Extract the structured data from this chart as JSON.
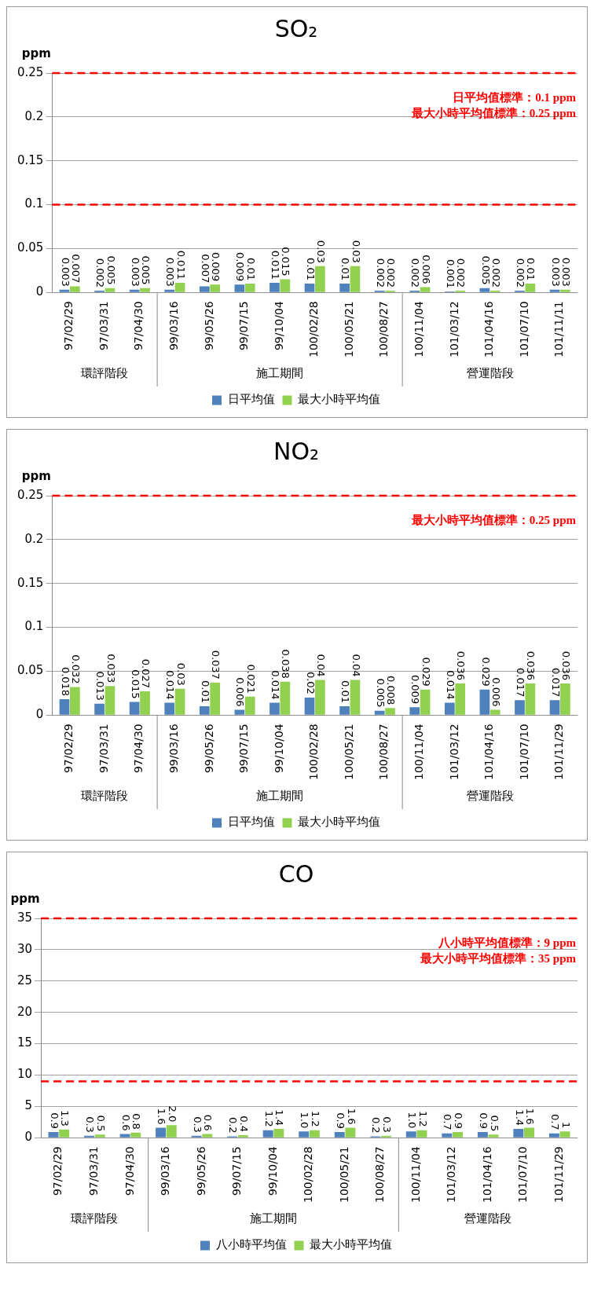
{
  "chart_data": [
    {
      "type": "bar",
      "title": "SO₂",
      "ylabel": "ppm",
      "categories": [
        "97/02/29",
        "97/03/31",
        "97/04/30",
        "99/03/16",
        "99/05/26",
        "99/07/15",
        "99/10/04",
        "100/02/28",
        "100/05/21",
        "100/08/27",
        "100/11/04",
        "101/03/12",
        "101/04/16",
        "101/07/10",
        "101/11/11"
      ],
      "series": [
        {
          "name": "日平均值",
          "color": "#4f81bd",
          "values": [
            0.003,
            0.002,
            0.003,
            0.003,
            0.007,
            0.009,
            0.011,
            0.01,
            0.01,
            0.002,
            0.002,
            0.001,
            0.005,
            0.002,
            0.003
          ]
        },
        {
          "name": "最大小時平均值",
          "color": "#92d050",
          "values": [
            0.007,
            0.005,
            0.005,
            0.011,
            0.009,
            0.01,
            0.015,
            0.03,
            0.03,
            0.002,
            0.006,
            0.002,
            0.002,
            0.01,
            0.003
          ]
        }
      ],
      "ylim": [
        0,
        0.25
      ],
      "yticks": [
        0,
        0.05,
        0.1,
        0.15,
        0.2,
        0.25
      ],
      "grid": "y",
      "legend": "bottom",
      "data_labels": true,
      "ref_lines": [
        {
          "axis": "y",
          "value": 0.1,
          "label": "日平均值標準：0.1 ppm",
          "color": "#ff0000",
          "line_style": "dashed"
        },
        {
          "axis": "y",
          "value": 0.25,
          "label": "最大小時平均值標準：0.25 ppm",
          "color": "#ff0000",
          "line_style": "dashed"
        }
      ],
      "annotations": [
        "環評階段",
        "施工期間",
        "營運階段"
      ]
    },
    {
      "type": "bar",
      "title": "NO₂",
      "ylabel": "ppm",
      "categories": [
        "97/02/29",
        "97/03/31",
        "97/04/30",
        "99/03/16",
        "99/05/26",
        "99/07/15",
        "99/10/04",
        "100/02/28",
        "100/05/21",
        "100/08/27",
        "100/11/04",
        "101/03/12",
        "101/04/16",
        "101/07/10",
        "101/11/29"
      ],
      "series": [
        {
          "name": "日平均值",
          "color": "#4f81bd",
          "values": [
            0.018,
            0.013,
            0.015,
            0.014,
            0.01,
            0.006,
            0.014,
            0.02,
            0.01,
            0.005,
            0.009,
            0.014,
            0.029,
            0.017,
            0.017
          ]
        },
        {
          "name": "最大小時平均值",
          "color": "#92d050",
          "values": [
            0.032,
            0.033,
            0.027,
            0.03,
            0.037,
            0.021,
            0.038,
            0.04,
            0.04,
            0.008,
            0.029,
            0.036,
            0.006,
            0.036,
            0.036
          ]
        }
      ],
      "ylim": [
        0,
        0.25
      ],
      "yticks": [
        0,
        0.05,
        0.1,
        0.15,
        0.2,
        0.25
      ],
      "grid": "y",
      "legend": "bottom",
      "data_labels": true,
      "ref_lines": [
        {
          "axis": "y",
          "value": 0.25,
          "label": "最大小時平均值標準：0.25 ppm",
          "color": "#ff0000",
          "line_style": "dashed"
        }
      ],
      "annotations": [
        "環評階段",
        "施工期間",
        "營運階段"
      ]
    },
    {
      "type": "bar",
      "title": "CO",
      "ylabel": "ppm",
      "categories": [
        "97/02/29",
        "97/03/31",
        "97/04/30",
        "99/03/16",
        "99/05/26",
        "99/07/15",
        "99/10/04",
        "100/02/28",
        "100/05/21",
        "100/08/27",
        "100/11/04",
        "101/03/12",
        "101/04/16",
        "101/07/10",
        "101/11/29"
      ],
      "series": [
        {
          "name": "八小時平均值",
          "color": "#4f81bd",
          "values": [
            0.9,
            0.3,
            0.6,
            1.6,
            0.3,
            0.2,
            1.2,
            1.0,
            0.9,
            0.2,
            1.0,
            0.7,
            0.9,
            1.4,
            0.7
          ],
          "value_labels": [
            "0.9",
            "0.3",
            "0.6",
            "1.6",
            "0.3",
            "0.2",
            "1.2",
            "1.0",
            "0.9",
            "0.2",
            "1.0",
            "0.7",
            "0.9",
            "1.4",
            "0.7"
          ]
        },
        {
          "name": "最大小時平均值",
          "color": "#92d050",
          "values": [
            1.3,
            0.5,
            0.8,
            2.0,
            0.6,
            0.4,
            1.4,
            1.2,
            1.6,
            0.3,
            1.2,
            0.9,
            0.5,
            1.6,
            1.0
          ],
          "value_labels": [
            "1.3",
            "0.5",
            "0.8",
            "2.0",
            "0.6",
            "0.4",
            "1.4",
            "1.2",
            "1.6",
            "0.3",
            "1.2",
            "0.9",
            "0.5",
            "1.6",
            "1"
          ]
        }
      ],
      "ylim": [
        0,
        35
      ],
      "yticks": [
        0,
        5,
        10,
        15,
        20,
        25,
        30,
        35
      ],
      "grid": "y",
      "legend": "bottom",
      "ref_lines": [
        {
          "axis": "y",
          "value": 9,
          "label": "八小時平均值標準：9 ppm",
          "color": "#ff0000",
          "line_style": "dashed"
        },
        {
          "axis": "y",
          "value": 35,
          "label": "最大小時平均值標準：35 ppm",
          "color": "#ff0000",
          "line_style": "dashed"
        }
      ],
      "annotations": [
        "環評階段",
        "施工期間",
        "營運階段"
      ]
    }
  ]
}
